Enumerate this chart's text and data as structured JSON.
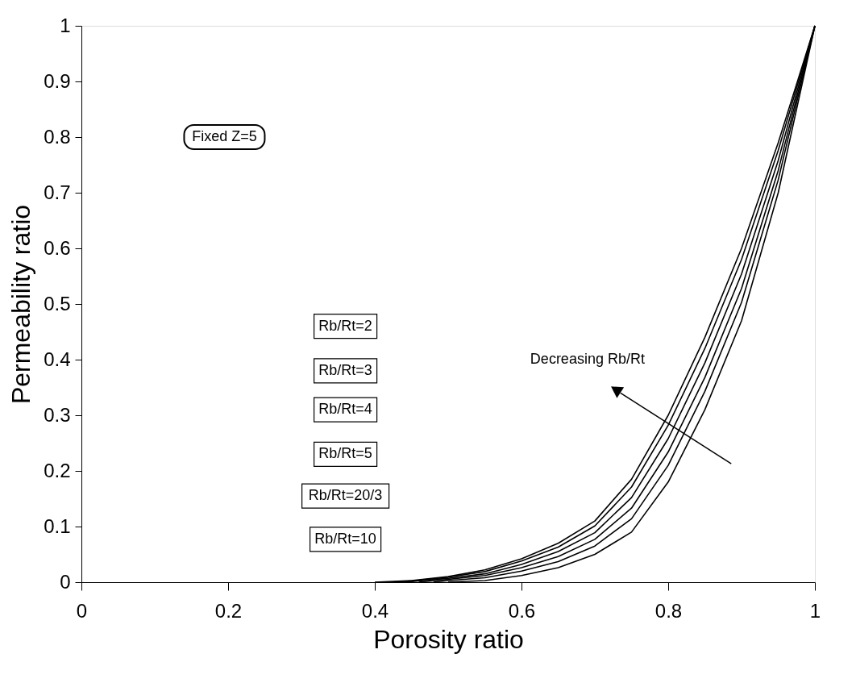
{
  "chart_data": {
    "type": "line",
    "xlabel": "Porosity ratio",
    "ylabel": "Permeability ratio",
    "x": [
      0.4,
      0.45,
      0.5,
      0.55,
      0.6,
      0.65,
      0.7,
      0.75,
      0.8,
      0.85,
      0.9,
      0.95,
      1.0
    ],
    "series": [
      {
        "name": "Rb/Rt=2",
        "color": "#000000",
        "values": [
          0,
          0.003,
          0.01,
          0.022,
          0.042,
          0.07,
          0.11,
          0.185,
          0.3,
          0.44,
          0.6,
          0.79,
          1
        ]
      },
      {
        "name": "Rb/Rt=3",
        "color": "#000000",
        "x": [
          0.42,
          0.45,
          0.5,
          0.55,
          0.6,
          0.65,
          0.7,
          0.75,
          0.8,
          0.85,
          0.9,
          0.95,
          1.0
        ],
        "values": [
          0,
          0.002,
          0.009,
          0.019,
          0.038,
          0.063,
          0.101,
          0.171,
          0.282,
          0.42,
          0.58,
          0.776,
          1
        ]
      },
      {
        "name": "Rb/Rt=4",
        "color": "#000000",
        "x": [
          0.44,
          0.5,
          0.55,
          0.6,
          0.65,
          0.7,
          0.75,
          0.8,
          0.85,
          0.9,
          0.95,
          1.0
        ],
        "values": [
          0,
          0.007,
          0.015,
          0.032,
          0.055,
          0.089,
          0.152,
          0.258,
          0.394,
          0.554,
          0.758,
          1
        ]
      },
      {
        "name": "Rb/Rt=5",
        "color": "#000000",
        "x": [
          0.46,
          0.5,
          0.55,
          0.6,
          0.65,
          0.7,
          0.75,
          0.8,
          0.85,
          0.9,
          0.95,
          1.0
        ],
        "values": [
          0,
          0.005,
          0.012,
          0.026,
          0.046,
          0.077,
          0.133,
          0.234,
          0.368,
          0.528,
          0.74,
          1
        ]
      },
      {
        "name": "Rb/Rt=20/3",
        "color": "#000000",
        "x": [
          0.48,
          0.5,
          0.55,
          0.6,
          0.65,
          0.7,
          0.75,
          0.8,
          0.85,
          0.9,
          0.95,
          1.0
        ],
        "values": [
          0,
          0.003,
          0.008,
          0.02,
          0.037,
          0.065,
          0.114,
          0.21,
          0.343,
          0.503,
          0.723,
          1
        ]
      },
      {
        "name": "Rb/Rt=10",
        "color": "#000000",
        "x": [
          0.5,
          0.55,
          0.6,
          0.65,
          0.7,
          0.75,
          0.8,
          0.85,
          0.9,
          0.95,
          1.0
        ],
        "values": [
          0,
          0.003,
          0.012,
          0.026,
          0.05,
          0.09,
          0.18,
          0.31,
          0.47,
          0.7,
          1
        ]
      }
    ],
    "xlim": [
      0,
      1
    ],
    "ylim": [
      0,
      1
    ],
    "xticks": [
      0,
      0.2,
      0.4,
      0.6,
      0.8,
      1
    ],
    "yticks": [
      0,
      0.1,
      0.2,
      0.3,
      0.4,
      0.5,
      0.6,
      0.7,
      0.8,
      0.9,
      1
    ],
    "grid": false,
    "legend": "left",
    "marker": "none",
    "line_style": "solid",
    "annotations": [
      "Fixed Z=5",
      "Decreasing Rb/Rt"
    ]
  }
}
